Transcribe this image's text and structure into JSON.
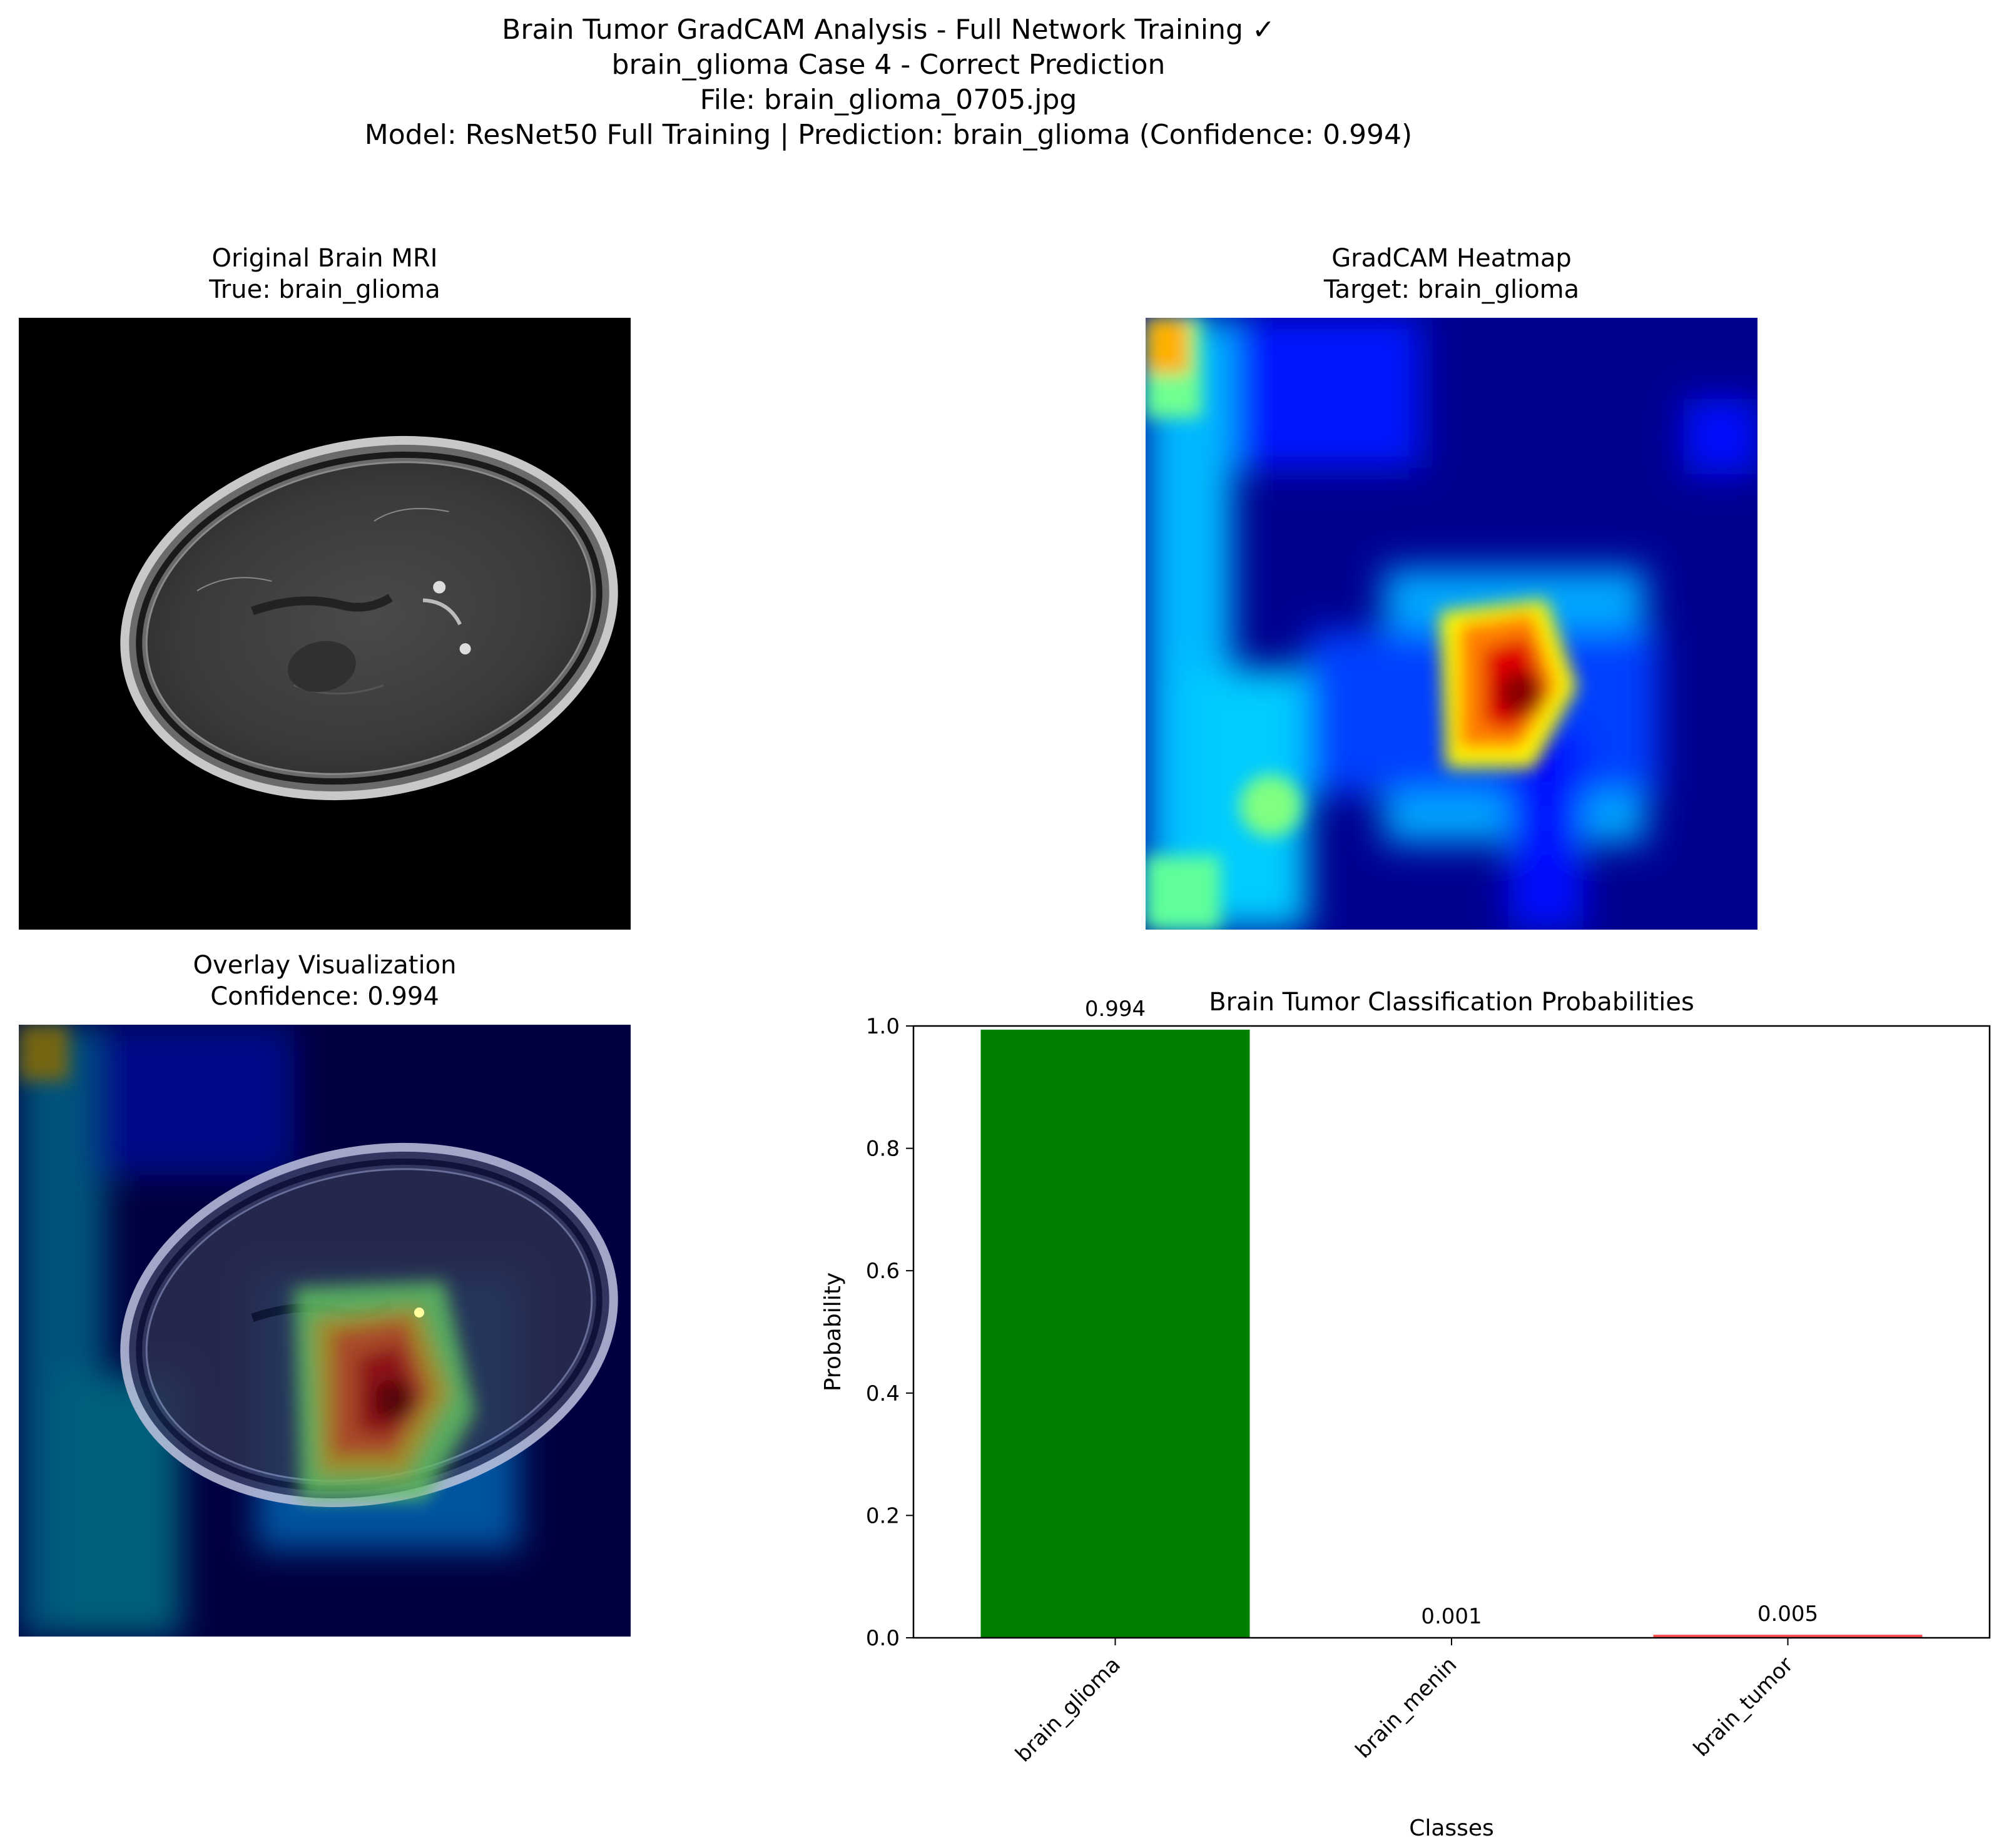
{
  "figure": {
    "suptitle_lines": [
      "Brain Tumor GradCAM Analysis - Full Network Training ✓",
      "brain_glioma Case 4 - Correct Prediction",
      "File: brain_glioma_0705.jpg",
      "Model: ResNet50 Full Training | Prediction: brain_glioma (Confidence: 0.994)"
    ]
  },
  "panels": {
    "original": {
      "title_line1": "Original Brain MRI",
      "title_line2": "True: brain_glioma"
    },
    "heatmap": {
      "title_line1": "GradCAM Heatmap",
      "title_line2": "Target: brain_glioma"
    },
    "overlay": {
      "title_line1": "Overlay Visualization",
      "title_line2": "Confidence: 0.994"
    }
  },
  "colors": {
    "bar_glioma": "#008000",
    "bar_menin": "#0000ff",
    "bar_tumor": "#ff0000",
    "axes": "#000000"
  },
  "chart_data": {
    "type": "bar",
    "title": "Brain Tumor Classification Probabilities",
    "xlabel": "Classes",
    "ylabel": "Probability",
    "categories": [
      "brain_glioma",
      "brain_menin",
      "brain_tumor"
    ],
    "values": [
      0.994,
      0.001,
      0.005
    ],
    "value_labels": [
      "0.994",
      "0.001",
      "0.005"
    ],
    "ylim": [
      0,
      1.0
    ],
    "yticks": [
      "0.0",
      "0.2",
      "0.4",
      "0.6",
      "0.8",
      "1.0"
    ],
    "grid": false,
    "xtick_rotation": 45
  }
}
